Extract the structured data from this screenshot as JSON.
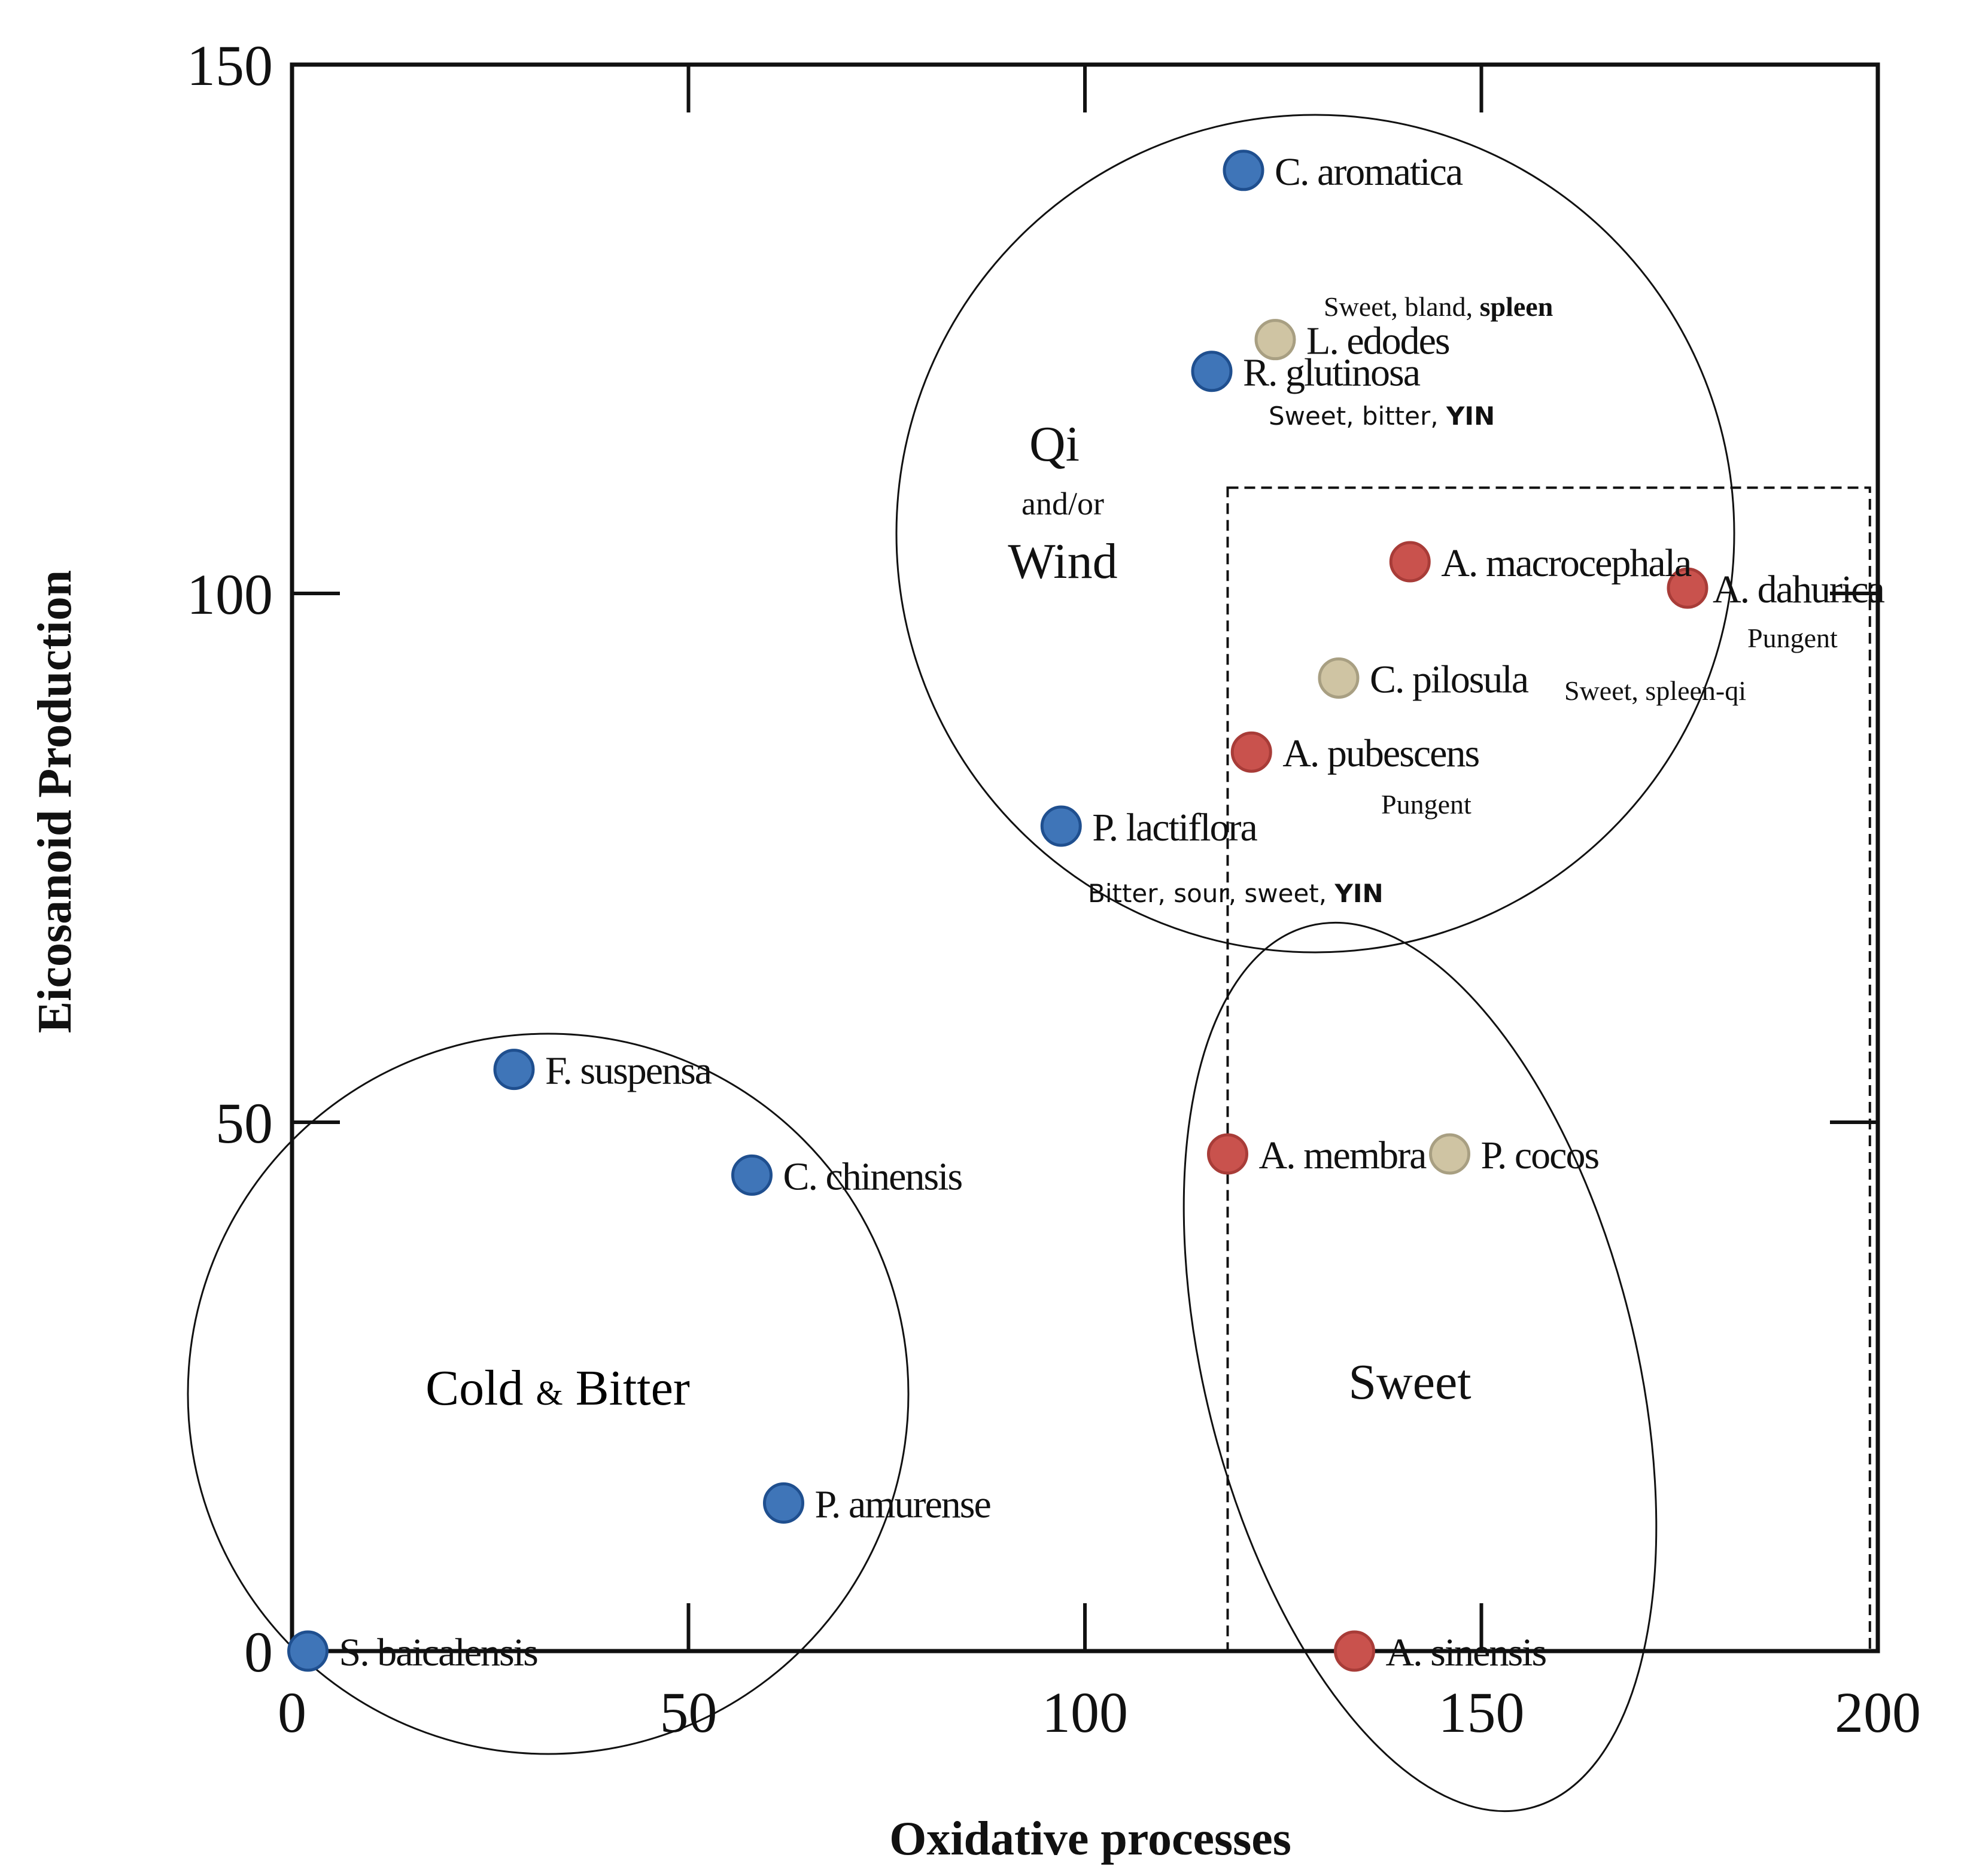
{
  "chart_data": {
    "type": "scatter",
    "title": "",
    "xlabel": "Oxidative processes",
    "ylabel": "Eicosanoid  Production",
    "xlim": [
      0,
      200
    ],
    "ylim": [
      0,
      150
    ],
    "x_ticks": [
      0,
      50,
      100,
      150,
      200
    ],
    "y_ticks": [
      0,
      50,
      100,
      150
    ],
    "grid": false,
    "color_legend": {
      "blue": "#3f75b8",
      "red": "#c9524d",
      "tan": "#cfc4a3"
    },
    "points": [
      {
        "name": "C. aromatica",
        "x": 120,
        "y": 140,
        "color": "blue"
      },
      {
        "name": "L. edodes",
        "x": 124,
        "y": 124,
        "color": "tan"
      },
      {
        "name": "R. glutinosa",
        "x": 116,
        "y": 121,
        "color": "blue"
      },
      {
        "name": "A. macrocephala",
        "x": 141,
        "y": 103,
        "color": "red"
      },
      {
        "name": "A. dahurica",
        "x": 176,
        "y": 100.5,
        "color": "red"
      },
      {
        "name": "C. pilosula",
        "x": 132,
        "y": 92,
        "color": "tan"
      },
      {
        "name": "A. pubescens",
        "x": 121,
        "y": 85,
        "color": "red"
      },
      {
        "name": "P. lactiflora",
        "x": 97,
        "y": 78,
        "color": "blue"
      },
      {
        "name": "F. suspensa",
        "x": 28,
        "y": 55,
        "color": "blue"
      },
      {
        "name": "C. chinensis",
        "x": 58,
        "y": 45,
        "color": "blue"
      },
      {
        "name": "A. membra",
        "x": 118,
        "y": 47,
        "color": "red"
      },
      {
        "name": "P. cocos",
        "x": 146,
        "y": 47,
        "color": "tan"
      },
      {
        "name": "P. amurense",
        "x": 62,
        "y": 14,
        "color": "blue"
      },
      {
        "name": "S. baicalensis",
        "x": 2,
        "y": 0,
        "color": "blue"
      },
      {
        "name": "A. sinensis",
        "x": 134,
        "y": 0,
        "color": "red"
      }
    ],
    "annotations": [
      {
        "text": "Sweet, bland, ",
        "bold_part": "spleen",
        "near": "L. edodes"
      },
      {
        "text": "Sweet, bitter, ",
        "bold_part": "YIN",
        "near": "R. glutinosa"
      },
      {
        "text": "Pungent",
        "near": "A. dahurica"
      },
      {
        "text": "Sweet, spleen-qi",
        "near": "C. pilosula"
      },
      {
        "text": "Pungent",
        "near": "A. pubescens"
      },
      {
        "text": "Bitter, sour, sweet, ",
        "bold_part": "YIN",
        "near": "P. lactiflora"
      }
    ],
    "groups": [
      {
        "name": "qi_wind",
        "line1": "Qi",
        "line2": "and/or",
        "line3": "Wind"
      },
      {
        "name": "cold_bitter",
        "part1": "Cold ",
        "amp": "&",
        "part2": " Bitter"
      },
      {
        "name": "sweet",
        "label": "Sweet"
      }
    ],
    "highlight_box": {
      "style": "dashed",
      "x_range": [
        118,
        199
      ],
      "y_range": [
        0,
        110
      ]
    }
  }
}
